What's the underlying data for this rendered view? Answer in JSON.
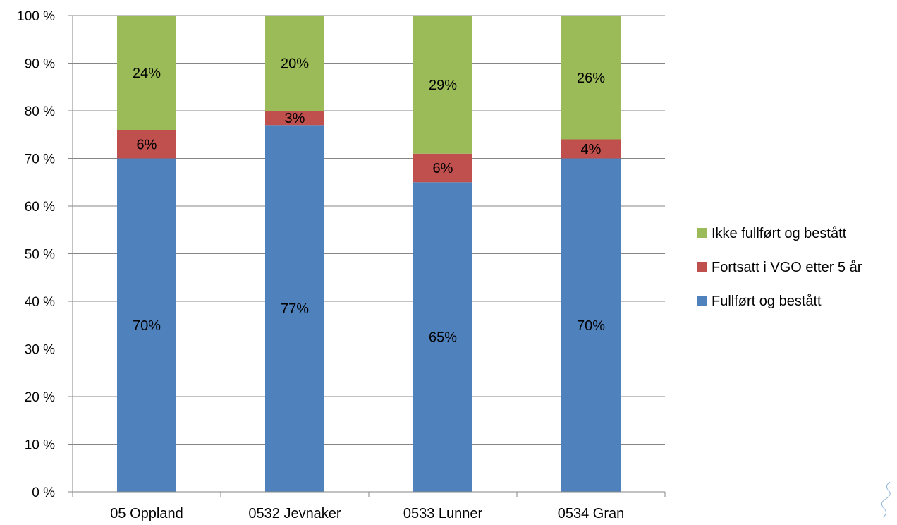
{
  "chart_data": {
    "type": "bar",
    "stacked": true,
    "percent_stacked": true,
    "categories": [
      "05 Oppland",
      "0532 Jevnaker",
      "0533 Lunner",
      "0534 Gran"
    ],
    "series": [
      {
        "name": "Fullført og bestått",
        "values": [
          70,
          77,
          65,
          70
        ],
        "labels": [
          "70%",
          "77%",
          "65%",
          "70%"
        ],
        "color": "#4F81BD"
      },
      {
        "name": "Fortsatt i VGO etter 5 år",
        "values": [
          6,
          3,
          6,
          4
        ],
        "labels": [
          "6%",
          "3%",
          "6%",
          "4%"
        ],
        "color": "#C0504D"
      },
      {
        "name": "Ikke fullført og bestått",
        "values": [
          24,
          20,
          29,
          26
        ],
        "labels": [
          "24%",
          "20%",
          "29%",
          "26%"
        ],
        "color": "#9BBB59"
      }
    ],
    "y_ticks": [
      "0 %",
      "10 %",
      "20 %",
      "30 %",
      "40 %",
      "50 %",
      "60 %",
      "70 %",
      "80 %",
      "90 %",
      "100 %"
    ],
    "ylim": [
      0,
      100
    ],
    "grid": true,
    "legend_position": "right"
  }
}
